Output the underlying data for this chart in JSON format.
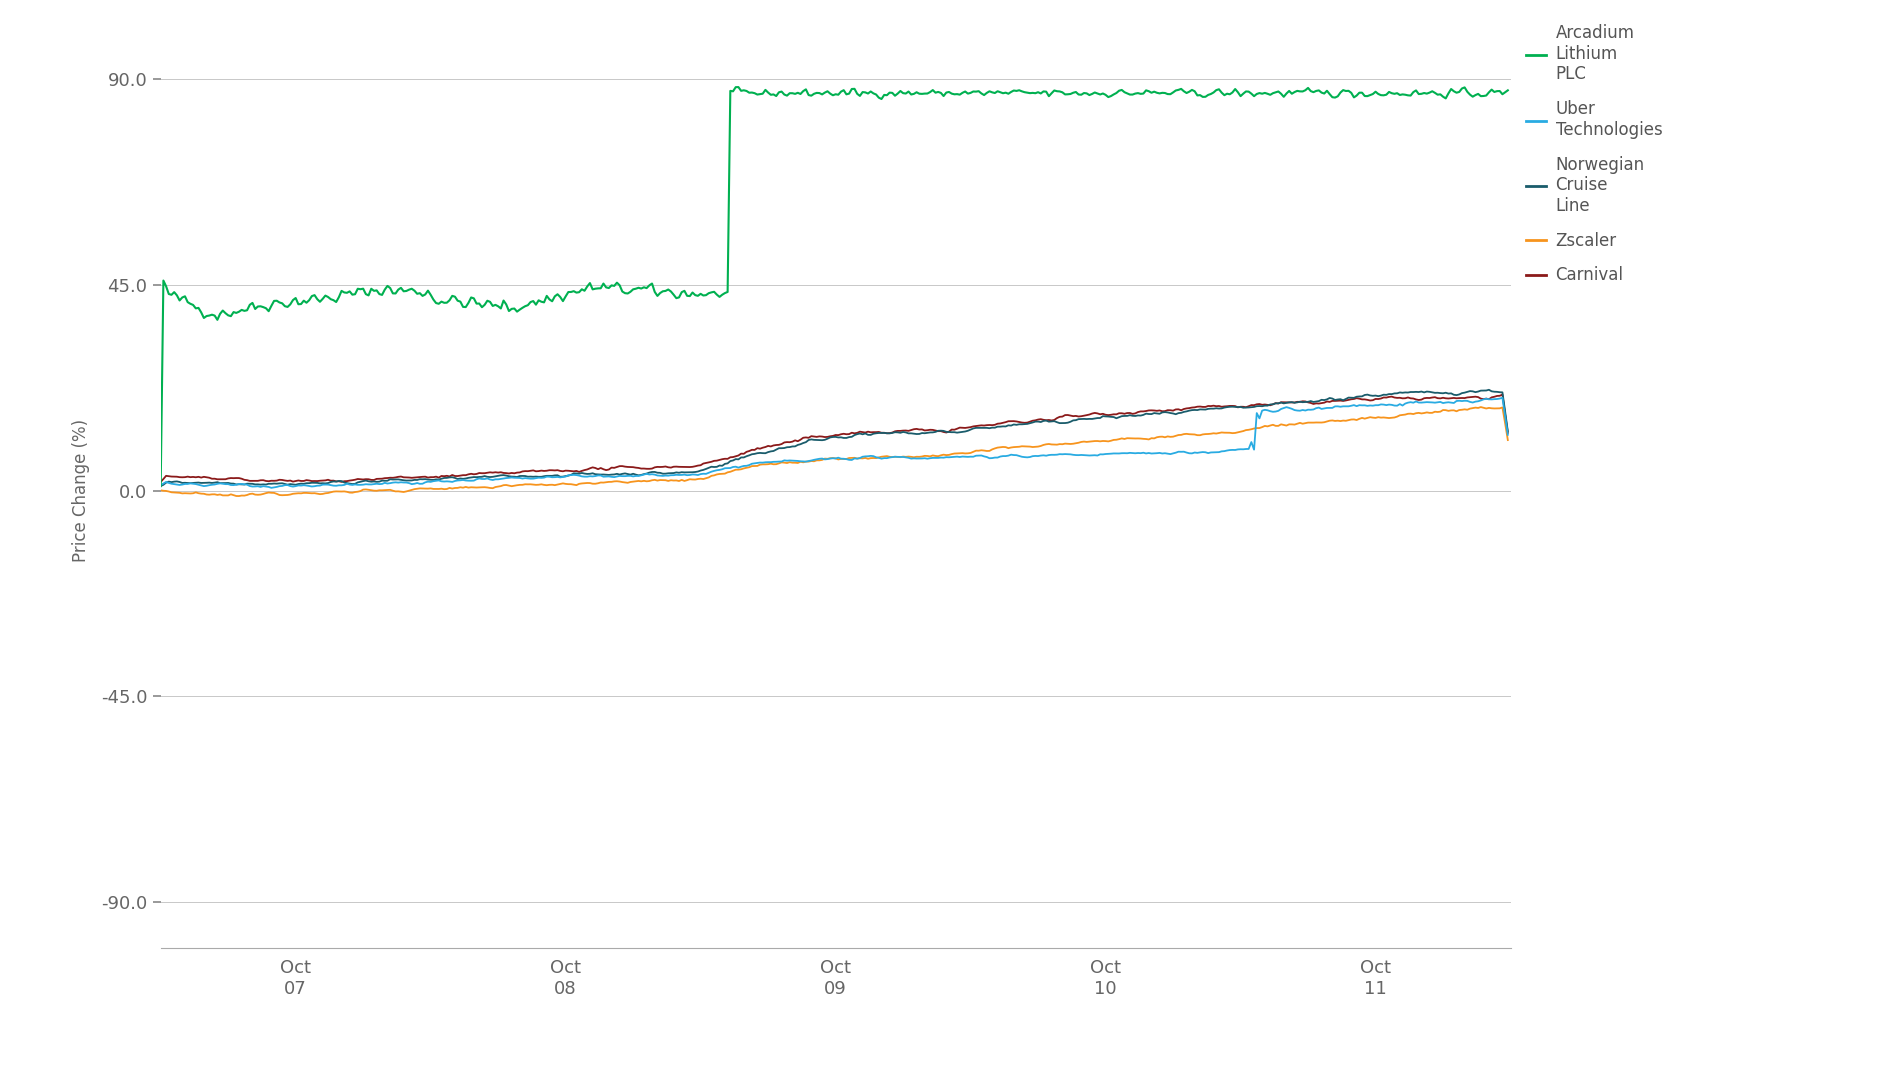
{
  "ylabel": "Price Change (%)",
  "yticks": [
    90.0,
    45.0,
    0.0,
    -45.0,
    -90.0
  ],
  "ylim": [
    -100,
    100
  ],
  "background_color": "#ffffff",
  "grid_color": "#c8c8c8",
  "legend": [
    {
      "label": "Arcadium\nLithium\nPLC",
      "color": "#00b050"
    },
    {
      "label": "Uber\nTechnologies",
      "color": "#29abe2"
    },
    {
      "label": "Norwegian\nCruise\nLine",
      "color": "#1a5c6b"
    },
    {
      "label": "Zscaler",
      "color": "#f7941d"
    },
    {
      "label": "Carnival",
      "color": "#8b1a1a"
    }
  ],
  "x_tick_labels": [
    "Oct\n07",
    "Oct\n08",
    "Oct\n09",
    "Oct\n10",
    "Oct\n11"
  ],
  "n_points": 500
}
